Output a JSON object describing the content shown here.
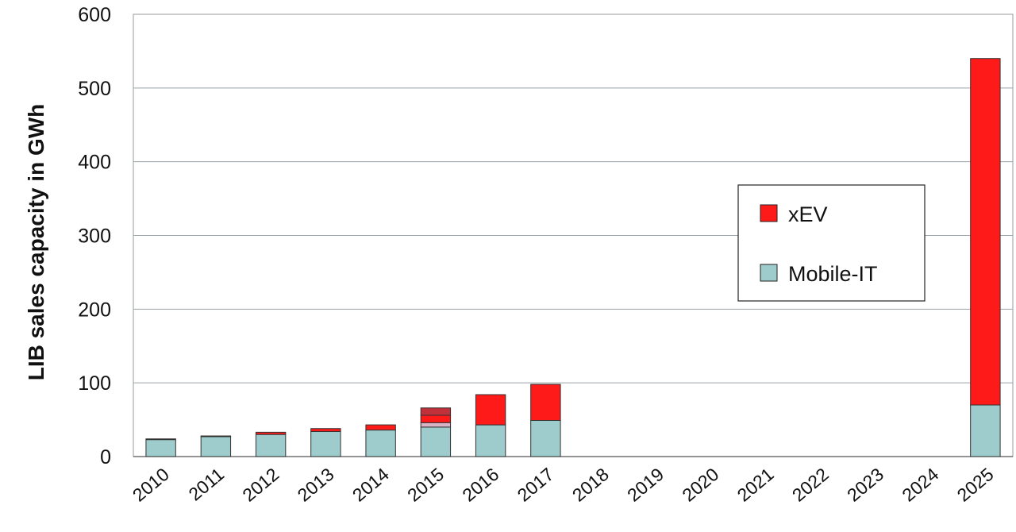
{
  "chart_data": {
    "type": "bar",
    "stacked": true,
    "title": "",
    "xlabel": "",
    "ylabel": "LIB sales capacity in GWh",
    "ylim": [
      0,
      600
    ],
    "yticks": [
      0,
      100,
      200,
      300,
      400,
      500,
      600
    ],
    "grid": true,
    "legend_position": "right-middle",
    "categories": [
      "2010",
      "2011",
      "2012",
      "2013",
      "2014",
      "2015",
      "2016",
      "2017",
      "2018",
      "2019",
      "2020",
      "2021",
      "2022",
      "2023",
      "2024",
      "2025"
    ],
    "series": [
      {
        "name": "Mobile-IT",
        "color": "#9ecbcb",
        "values": [
          23,
          27,
          30,
          34,
          36,
          40,
          43,
          49,
          null,
          null,
          null,
          null,
          null,
          null,
          null,
          70
        ]
      },
      {
        "name": "xEV",
        "color": "#ff1a1a",
        "values": [
          1,
          1,
          3,
          4,
          7,
          26,
          41,
          49,
          null,
          null,
          null,
          null,
          null,
          null,
          null,
          470
        ]
      }
    ],
    "segment_detail_2015": [
      {
        "from": 40,
        "to": 46,
        "color": "#d9b3c6"
      },
      {
        "from": 46,
        "to": 56,
        "color": "#ff1a1a"
      },
      {
        "from": 56,
        "to": 66,
        "color": "#c2303a"
      }
    ]
  }
}
